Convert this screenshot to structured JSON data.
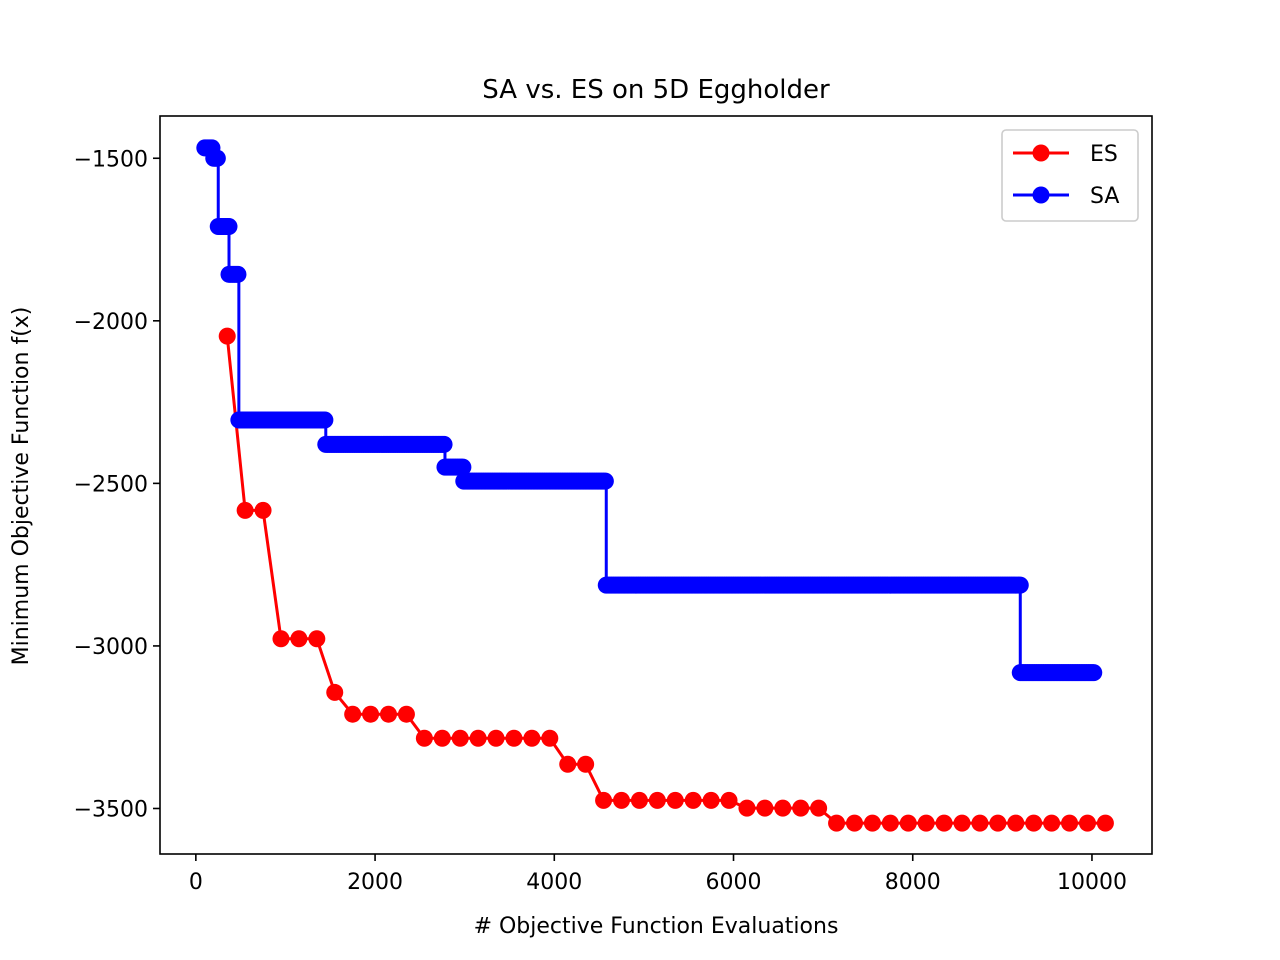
{
  "chart_data": {
    "type": "line",
    "title": "SA vs. ES on 5D Eggholder",
    "xlabel": "# Objective Function Evaluations",
    "ylabel": "Minimum Objective Function f(x)",
    "xlim": [
      -400,
      10670
    ],
    "ylim": [
      -3640,
      -1370
    ],
    "xticks": [
      0,
      2000,
      4000,
      6000,
      8000,
      10000
    ],
    "xtick_labels": [
      "0",
      "2000",
      "4000",
      "6000",
      "8000",
      "10000"
    ],
    "yticks": [
      -1500,
      -2000,
      -2500,
      -3000,
      -3500
    ],
    "ytick_labels": [
      "−1500",
      "−2000",
      "−2500",
      "−3000",
      "−3500"
    ],
    "grid": false,
    "legend": {
      "placement": "top-right"
    },
    "series": [
      {
        "name": "ES",
        "color": "#ff0000",
        "marker": "circle",
        "x": [
          350,
          550,
          750,
          950,
          1150,
          1350,
          1550,
          1750,
          1950,
          2150,
          2350,
          2550,
          2750,
          2950,
          3150,
          3350,
          3550,
          3750,
          3950,
          4150,
          4350,
          4550,
          4750,
          4950,
          5150,
          5350,
          5550,
          5750,
          5950,
          6150,
          6350,
          6550,
          6750,
          6950,
          7150,
          7350,
          7550,
          7750,
          7950,
          8150,
          8350,
          8550,
          8750,
          8950,
          9150,
          9350,
          9550,
          9750,
          9950,
          10150
        ],
        "y": [
          -2047,
          -2583,
          -2583,
          -2978,
          -2978,
          -2978,
          -3143,
          -3210,
          -3210,
          -3210,
          -3210,
          -3284,
          -3284,
          -3284,
          -3284,
          -3284,
          -3284,
          -3284,
          -3284,
          -3364,
          -3364,
          -3475,
          -3475,
          -3475,
          -3475,
          -3475,
          -3475,
          -3475,
          -3475,
          -3499,
          -3499,
          -3499,
          -3499,
          -3499,
          -3545,
          -3545,
          -3545,
          -3545,
          -3545,
          -3545,
          -3545,
          -3545,
          -3545,
          -3545,
          -3545,
          -3545,
          -3545,
          -3545,
          -3545,
          -3545
        ]
      },
      {
        "name": "SA",
        "color": "#0000ff",
        "marker": "circle",
        "steps": [
          {
            "x_start": 100,
            "x_end": 190,
            "y": -1468
          },
          {
            "x_start": 200,
            "x_end": 250,
            "y": -1500
          },
          {
            "x_start": 250,
            "x_end": 370,
            "y": -1710
          },
          {
            "x_start": 370,
            "x_end": 480,
            "y": -1857
          },
          {
            "x_start": 480,
            "x_end": 1450,
            "y": -2305
          },
          {
            "x_start": 1450,
            "x_end": 2780,
            "y": -2380
          },
          {
            "x_start": 2780,
            "x_end": 2990,
            "y": -2450
          },
          {
            "x_start": 2990,
            "x_end": 4580,
            "y": -2493
          },
          {
            "x_start": 4580,
            "x_end": 9200,
            "y": -2813
          },
          {
            "x_start": 9200,
            "x_end": 10030,
            "y": -3082
          }
        ]
      }
    ]
  }
}
